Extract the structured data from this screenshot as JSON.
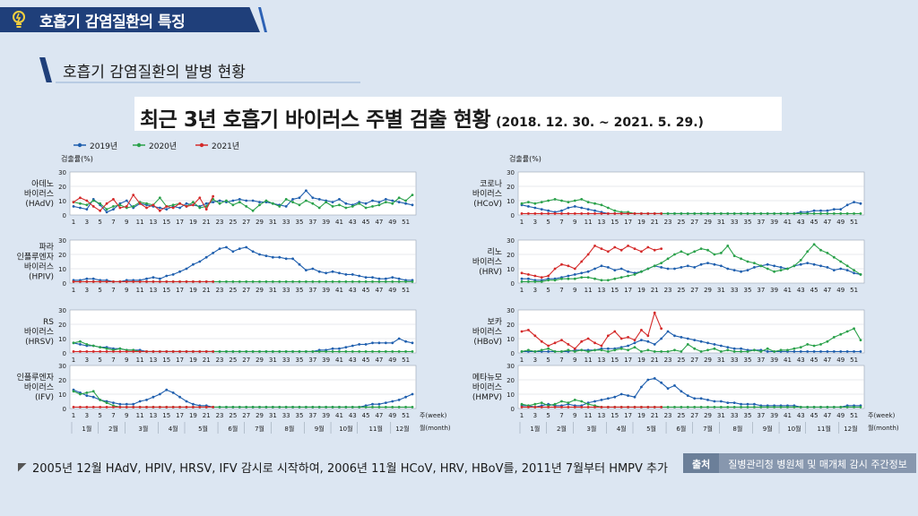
{
  "header": {
    "section_title": "호흡기 감염질환의 특징"
  },
  "subheading": {
    "text": "호흡기 감염질환의 발병 현황"
  },
  "main_title": {
    "text": "최근 3년 호흡기 바이러스 주별 검출 현황",
    "period": "(2018. 12. 30. ~ 2021. 5. 29.)"
  },
  "footnote": {
    "text": "2005년 12월 HAdV, HPIV, HRSV, IFV 감시로 시작하여, 2006년 11월 HCoV, HRV, HBoV를, 2011년 7월부터 HMPV 추가"
  },
  "source": {
    "label": "출처",
    "value": "질병관리청 병원체 및 매개체 감시 주간정보"
  },
  "colors": {
    "y2019": "#1f5fae",
    "y2020": "#2aa14a",
    "y2021": "#d42a2a",
    "grid": "#9aa6b4",
    "panel_bg": "#ffffff"
  },
  "chart_data": {
    "type": "line",
    "legend": [
      "2019년",
      "2020년",
      "2021년"
    ],
    "ylabel": "검출률(%)",
    "ylim": [
      0,
      30
    ],
    "yticks": [
      0,
      10,
      20,
      30
    ],
    "week_ticks": [
      "1",
      "3",
      "5",
      "7",
      "9",
      "11",
      "13",
      "15",
      "17",
      "19",
      "21",
      "23",
      "25",
      "27",
      "29",
      "31",
      "33",
      "35",
      "37",
      "39",
      "41",
      "43",
      "45",
      "47",
      "49",
      "51"
    ],
    "week_unit": "주(week)",
    "month_unit": "월(month)",
    "months": [
      "1월",
      "2월",
      "3월",
      "4월",
      "5월",
      "6월",
      "7월",
      "8월",
      "9월",
      "10월",
      "11월",
      "12월"
    ],
    "panels": [
      {
        "name": "아데노\n바이러스\n(HAdV)",
        "y2019": [
          6,
          5,
          4,
          11,
          7,
          2,
          4,
          8,
          10,
          5,
          8,
          7,
          6,
          5,
          4,
          6,
          5,
          8,
          7,
          6,
          8,
          9,
          10,
          9,
          10,
          11,
          10,
          10,
          9,
          9,
          8,
          7,
          6,
          11,
          12,
          17,
          12,
          11,
          10,
          9,
          11,
          8,
          7,
          9,
          8,
          10,
          9,
          11,
          10,
          9,
          8,
          7
        ],
        "y2020": [
          9,
          8,
          7,
          10,
          8,
          4,
          6,
          7,
          5,
          6,
          9,
          8,
          7,
          12,
          6,
          7,
          8,
          6,
          9,
          5,
          6,
          11,
          8,
          10,
          7,
          9,
          6,
          3,
          7,
          10,
          8,
          6,
          11,
          9,
          7,
          10,
          8,
          5,
          9,
          6,
          7,
          5,
          6,
          8,
          5,
          6,
          7,
          9,
          8,
          12,
          10,
          14
        ],
        "y2021": [
          9,
          12,
          10,
          6,
          3,
          8,
          11,
          5,
          6,
          14,
          8,
          5,
          7,
          3,
          6,
          5,
          8,
          6,
          7,
          12,
          4,
          13
        ]
      },
      {
        "name": "코로나\n바이러스\n(HCoV)",
        "y2019": [
          7,
          6,
          5,
          4,
          3,
          2,
          3,
          5,
          6,
          5,
          4,
          3,
          2,
          1,
          1,
          1,
          1,
          1,
          1,
          1,
          1,
          1,
          1,
          1,
          1,
          1,
          1,
          1,
          1,
          1,
          1,
          1,
          1,
          1,
          1,
          1,
          1,
          1,
          1,
          1,
          1,
          1,
          2,
          2,
          3,
          3,
          3,
          4,
          4,
          7,
          9,
          8
        ],
        "y2020": [
          8,
          9,
          8,
          9,
          10,
          11,
          10,
          9,
          10,
          11,
          9,
          8,
          7,
          5,
          3,
          2,
          2,
          1,
          1,
          1,
          1,
          1,
          1,
          1,
          1,
          1,
          1,
          1,
          1,
          1,
          1,
          1,
          1,
          1,
          1,
          1,
          1,
          1,
          1,
          1,
          1,
          1,
          1,
          1,
          1,
          1,
          1,
          1,
          1,
          1,
          1,
          1
        ],
        "y2021": [
          1,
          1,
          1,
          1,
          1,
          1,
          1,
          1,
          1,
          1,
          1,
          1,
          1,
          1,
          1,
          1,
          1,
          1,
          1,
          1,
          1,
          1
        ]
      },
      {
        "name": "파라\n인플루엔자\n바이러스\n(HPIV)",
        "y2019": [
          2,
          2,
          3,
          3,
          2,
          2,
          1,
          1,
          2,
          2,
          2,
          3,
          4,
          3,
          5,
          6,
          8,
          10,
          13,
          15,
          18,
          21,
          24,
          25,
          22,
          24,
          25,
          22,
          20,
          19,
          18,
          18,
          17,
          17,
          13,
          9,
          10,
          8,
          7,
          8,
          7,
          6,
          6,
          5,
          4,
          4,
          3,
          3,
          4,
          3,
          2,
          2
        ],
        "y2020": [
          1,
          1,
          1,
          1,
          1,
          1,
          1,
          1,
          1,
          1,
          1,
          1,
          1,
          1,
          1,
          1,
          1,
          1,
          1,
          1,
          1,
          1,
          1,
          1,
          1,
          1,
          1,
          1,
          1,
          1,
          1,
          1,
          1,
          1,
          1,
          1,
          1,
          1,
          1,
          1,
          1,
          1,
          1,
          1,
          1,
          1,
          1,
          1,
          1,
          1,
          1,
          1
        ],
        "y2021": [
          1,
          1,
          1,
          1,
          1,
          1,
          1,
          1,
          1,
          1,
          1,
          1,
          1,
          1,
          1,
          1,
          1,
          1,
          1,
          1,
          1,
          1
        ]
      },
      {
        "name": "리노\n바이러스\n(HRV)",
        "y2019": [
          3,
          3,
          2,
          2,
          3,
          3,
          4,
          5,
          6,
          7,
          8,
          10,
          12,
          11,
          9,
          10,
          8,
          7,
          8,
          10,
          12,
          11,
          10,
          10,
          11,
          12,
          11,
          13,
          14,
          13,
          12,
          10,
          9,
          8,
          9,
          11,
          12,
          13,
          12,
          11,
          10,
          12,
          13,
          14,
          13,
          12,
          11,
          9,
          10,
          9,
          7,
          6
        ],
        "y2020": [
          1,
          1,
          1,
          1,
          2,
          2,
          3,
          3,
          3,
          4,
          4,
          3,
          2,
          2,
          3,
          4,
          5,
          6,
          8,
          10,
          12,
          14,
          17,
          20,
          22,
          20,
          22,
          24,
          23,
          20,
          21,
          26,
          19,
          17,
          15,
          14,
          12,
          10,
          8,
          9,
          10,
          12,
          16,
          22,
          27,
          23,
          21,
          18,
          15,
          12,
          9,
          6
        ],
        "y2021": [
          7,
          6,
          5,
          4,
          5,
          10,
          13,
          12,
          10,
          15,
          20,
          26,
          24,
          22,
          25,
          23,
          26,
          24,
          22,
          25,
          23,
          24
        ]
      },
      {
        "name": "RS\n바이러스\n(HRSV)",
        "y2019": [
          7,
          6,
          5,
          5,
          4,
          4,
          3,
          3,
          2,
          2,
          2,
          1,
          1,
          1,
          1,
          1,
          1,
          1,
          1,
          1,
          1,
          1,
          1,
          1,
          1,
          1,
          1,
          1,
          1,
          1,
          1,
          1,
          1,
          1,
          1,
          1,
          1,
          2,
          2,
          3,
          3,
          4,
          5,
          6,
          6,
          7,
          7,
          7,
          7,
          10,
          8,
          7
        ],
        "y2020": [
          7,
          8,
          6,
          5,
          4,
          3,
          2,
          3,
          2,
          2,
          1,
          1,
          1,
          1,
          1,
          1,
          1,
          1,
          1,
          1,
          1,
          1,
          1,
          1,
          1,
          1,
          1,
          1,
          1,
          1,
          1,
          1,
          1,
          1,
          1,
          1,
          1,
          1,
          1,
          1,
          1,
          1,
          1,
          1,
          1,
          1,
          1,
          1,
          1,
          1,
          1,
          1
        ],
        "y2021": [
          1,
          1,
          1,
          1,
          1,
          1,
          1,
          1,
          1,
          1,
          1,
          1,
          1,
          1,
          1,
          1,
          1,
          1,
          1,
          1,
          1,
          1
        ]
      },
      {
        "name": "보카\n바이러스\n(HBoV)",
        "y2019": [
          1,
          1,
          1,
          1,
          1,
          1,
          1,
          1,
          2,
          2,
          2,
          2,
          3,
          3,
          3,
          4,
          5,
          7,
          9,
          8,
          6,
          10,
          15,
          12,
          11,
          10,
          9,
          8,
          7,
          6,
          5,
          4,
          3,
          3,
          2,
          2,
          2,
          1,
          1,
          1,
          1,
          1,
          1,
          1,
          1,
          1,
          1,
          1,
          1,
          1,
          1,
          1
        ],
        "y2020": [
          1,
          2,
          1,
          2,
          3,
          1,
          1,
          2,
          1,
          2,
          1,
          2,
          2,
          1,
          2,
          3,
          2,
          4,
          1,
          2,
          1,
          1,
          1,
          2,
          1,
          6,
          3,
          1,
          2,
          3,
          1,
          2,
          1,
          1,
          1,
          2,
          1,
          3,
          1,
          2,
          2,
          3,
          4,
          6,
          5,
          6,
          8,
          11,
          13,
          15,
          17,
          9
        ],
        "y2021": [
          15,
          16,
          12,
          8,
          5,
          7,
          9,
          6,
          3,
          8,
          10,
          7,
          5,
          12,
          15,
          10,
          11,
          9,
          16,
          12,
          28,
          17
        ]
      },
      {
        "name": "인플루엔자\n바이러스\n(IFV)",
        "y2019": [
          13,
          11,
          9,
          8,
          6,
          5,
          4,
          3,
          3,
          3,
          5,
          6,
          8,
          10,
          13,
          11,
          8,
          5,
          3,
          2,
          2,
          1,
          1,
          1,
          1,
          1,
          1,
          1,
          1,
          1,
          1,
          1,
          1,
          1,
          1,
          1,
          1,
          1,
          1,
          1,
          1,
          1,
          1,
          1,
          2,
          3,
          3,
          4,
          5,
          6,
          8,
          10
        ],
        "y2020": [
          12,
          10,
          11,
          12,
          6,
          4,
          2,
          1,
          1,
          1,
          1,
          1,
          1,
          1,
          1,
          1,
          1,
          1,
          1,
          1,
          1,
          1,
          1,
          1,
          1,
          1,
          1,
          1,
          1,
          1,
          1,
          1,
          1,
          1,
          1,
          1,
          1,
          1,
          1,
          1,
          1,
          1,
          1,
          1,
          1,
          1,
          1,
          1,
          1,
          1,
          1,
          1
        ],
        "y2021": [
          1,
          1,
          1,
          1,
          1,
          1,
          1,
          1,
          1,
          1,
          1,
          1,
          1,
          1,
          1,
          1,
          1,
          1,
          1,
          1,
          1,
          1
        ]
      },
      {
        "name": "메타뉴모\n바이러스\n(HMPV)",
        "y2019": [
          2,
          2,
          1,
          2,
          3,
          2,
          2,
          3,
          2,
          2,
          4,
          5,
          6,
          7,
          8,
          10,
          9,
          8,
          15,
          20,
          21,
          18,
          14,
          16,
          12,
          9,
          7,
          7,
          6,
          5,
          5,
          4,
          4,
          3,
          3,
          3,
          2,
          2,
          2,
          2,
          2,
          2,
          1,
          1,
          1,
          1,
          1,
          1,
          1,
          2,
          2,
          2
        ],
        "y2020": [
          3,
          2,
          3,
          4,
          2,
          3,
          5,
          4,
          6,
          5,
          3,
          2,
          1,
          1,
          1,
          1,
          1,
          1,
          1,
          1,
          1,
          1,
          1,
          1,
          1,
          1,
          1,
          1,
          1,
          1,
          1,
          1,
          1,
          1,
          1,
          1,
          1,
          1,
          1,
          1,
          1,
          1,
          1,
          1,
          1,
          1,
          1,
          1,
          1,
          1,
          1,
          1
        ],
        "y2021": [
          1,
          1,
          1,
          1,
          1,
          1,
          1,
          1,
          1,
          1,
          1,
          1,
          1,
          1,
          1,
          1,
          1,
          1,
          1,
          1,
          1,
          1
        ]
      }
    ]
  }
}
